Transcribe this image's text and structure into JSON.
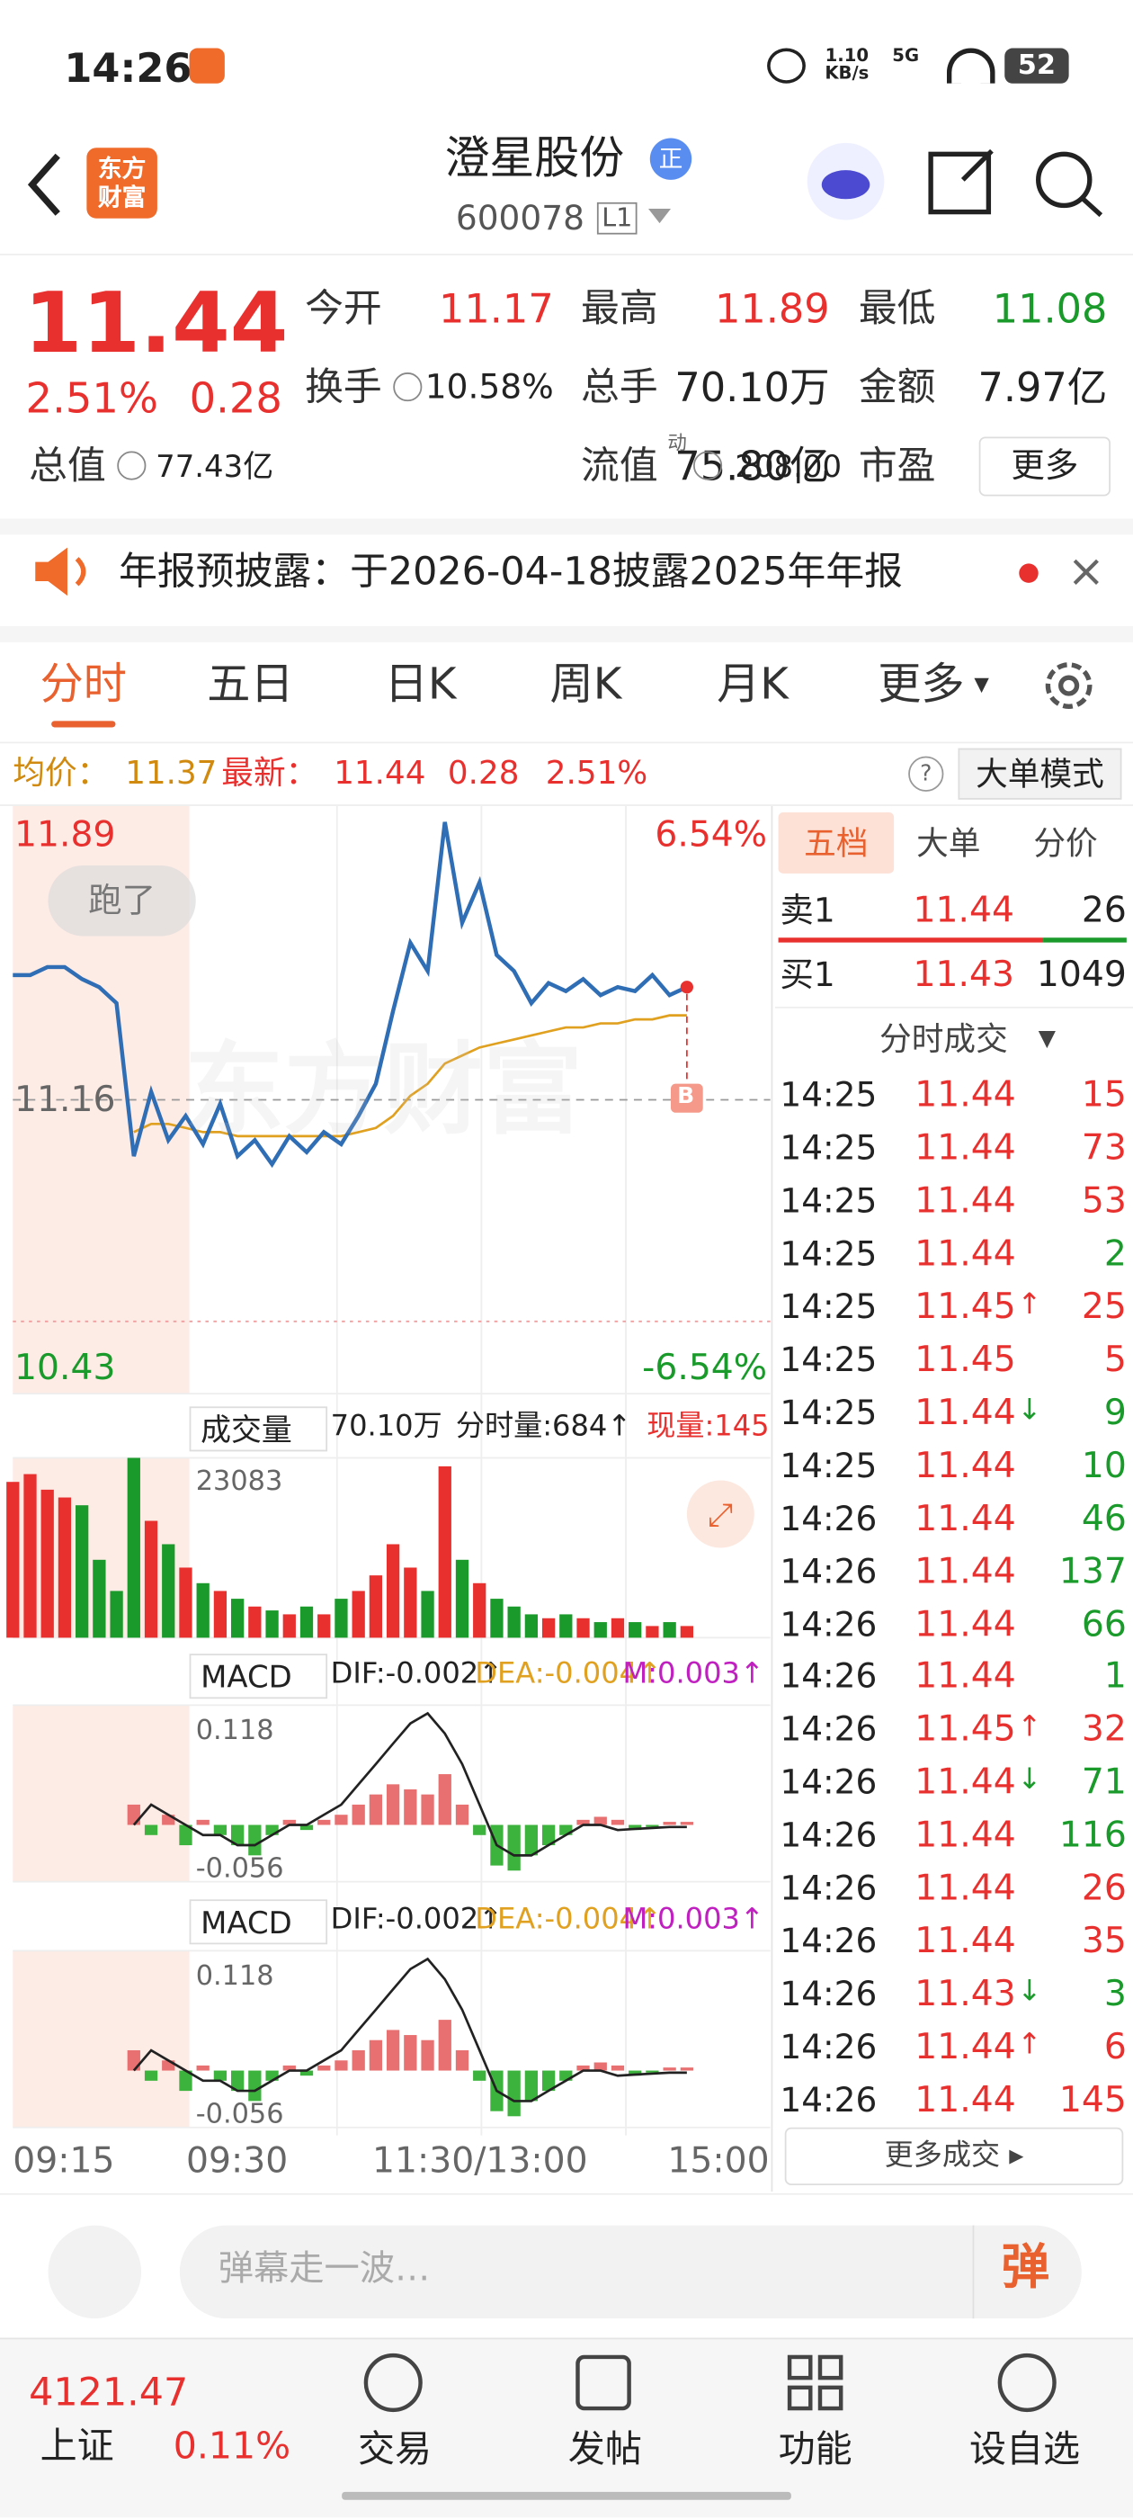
{
  "status": {
    "time": "14:26",
    "speed": "1.10",
    "speed_unit": "KB/s",
    "network": "5G",
    "battery": "52"
  },
  "header": {
    "logo_line1": "东方",
    "logo_line2": "财富",
    "name": "澄星股份",
    "badge": "正",
    "code": "600078",
    "level": "L1"
  },
  "quote": {
    "price": "11.44",
    "change_pct": "2.51%",
    "change": "0.28",
    "fields": [
      {
        "label": "今开",
        "value": "11.17"
      },
      {
        "label": "最高",
        "value": "11.89"
      },
      {
        "label": "最低",
        "value": "11.08"
      },
      {
        "label": "换手",
        "value": "10.58%"
      },
      {
        "label": "总手",
        "value": "70.10万"
      },
      {
        "label": "金额",
        "value": "7.97亿"
      },
      {
        "label": "总值",
        "value": "77.43亿"
      },
      {
        "label": "流值",
        "value": "75.80亿"
      },
      {
        "label": "市盈",
        "value": "208.00",
        "sup": "动"
      }
    ],
    "more": "更多"
  },
  "notice": {
    "text": "年报预披露：于2026-04-18披露2025年年报"
  },
  "tabs": [
    "分时",
    "五日",
    "日K",
    "周K",
    "月K",
    "更多"
  ],
  "summary": {
    "avg_label": "均价：",
    "avg": "11.37",
    "latest_label": "最新：",
    "latest": "11.44",
    "change": "0.28",
    "pct": "2.51%",
    "mode": "大单模式"
  },
  "intraday": {
    "price_max": "11.89",
    "pct_max": "6.54%",
    "pre_close": "11.16",
    "price_min": "10.43",
    "pct_min": "-6.54%",
    "bubble": "跑了",
    "marker": "B",
    "watermark": "东方财富",
    "time_labels": [
      "09:15",
      "09:30",
      "11:30/13:00",
      "15:00"
    ],
    "ylim": [
      10.43,
      11.89
    ],
    "price": [
      11.47,
      11.47,
      11.49,
      11.49,
      11.46,
      11.44,
      11.4,
      11.02,
      11.18,
      11.06,
      11.12,
      11.05,
      11.15,
      11.02,
      11.06,
      11.0,
      11.07,
      11.03,
      11.08,
      11.05,
      11.12,
      11.2,
      11.38,
      11.55,
      11.48,
      11.85,
      11.6,
      11.7,
      11.52,
      11.48,
      11.4,
      11.45,
      11.43,
      11.46,
      11.42,
      11.44,
      11.43,
      11.47,
      11.42,
      11.44
    ],
    "avg": [
      null,
      null,
      null,
      null,
      null,
      null,
      null,
      11.08,
      11.1,
      11.1,
      11.09,
      11.08,
      11.08,
      11.07,
      11.07,
      11.07,
      11.07,
      11.07,
      11.07,
      11.07,
      11.08,
      11.09,
      11.12,
      11.17,
      11.2,
      11.25,
      11.27,
      11.29,
      11.3,
      11.31,
      11.32,
      11.33,
      11.34,
      11.34,
      11.35,
      11.35,
      11.36,
      11.36,
      11.37,
      11.37
    ],
    "price_color": "#2f6db5",
    "avg_color": "#e0a020"
  },
  "volume": {
    "label": "成交量",
    "total": "70.10万",
    "minute": "分时量:684↑",
    "current": "现量:145",
    "max_label": "23083",
    "ylim": [
      0,
      23083
    ],
    "values": [
      20000,
      21000,
      19000,
      18000,
      17000,
      10000,
      6000,
      23083,
      15000,
      12000,
      9000,
      7000,
      6000,
      5000,
      4000,
      3500,
      3000,
      4000,
      3000,
      5000,
      6000,
      8000,
      12000,
      9000,
      6000,
      22000,
      10000,
      7000,
      5000,
      4000,
      3000,
      2500,
      3000,
      2500,
      2000,
      2500,
      2000,
      1500,
      2000,
      1500
    ]
  },
  "macd": {
    "label": "MACD",
    "dif": "DIF:-0.002↑",
    "dea": "DEA:-0.004↑",
    "m": "M:0.003↑",
    "top_label": "0.118",
    "bottom_label": "-0.056",
    "ylim": [
      -0.056,
      0.118
    ],
    "hist": [
      null,
      null,
      null,
      null,
      null,
      null,
      null,
      0.02,
      -0.01,
      0.01,
      -0.02,
      0.005,
      -0.01,
      -0.02,
      -0.03,
      -0.01,
      0.005,
      -0.005,
      0.005,
      0.01,
      0.02,
      0.03,
      0.04,
      0.035,
      0.03,
      0.05,
      0.02,
      -0.01,
      -0.04,
      -0.045,
      -0.03,
      -0.02,
      -0.01,
      0.005,
      0.008,
      0.005,
      -0.005,
      -0.002,
      0.003,
      0.003
    ],
    "dif_line": [
      null,
      null,
      null,
      null,
      null,
      null,
      null,
      0.0,
      0.02,
      0.01,
      0.0,
      -0.01,
      -0.01,
      -0.02,
      -0.02,
      -0.01,
      0.0,
      0.0,
      0.01,
      0.02,
      0.04,
      0.06,
      0.08,
      0.1,
      0.11,
      0.09,
      0.06,
      0.02,
      -0.02,
      -0.03,
      -0.03,
      -0.02,
      -0.01,
      0.0,
      0.0,
      -0.005,
      -0.004,
      -0.003,
      -0.002,
      -0.002
    ]
  },
  "book": {
    "tabs": [
      "五档",
      "大单",
      "分价"
    ],
    "ask": {
      "label": "卖1",
      "price": "11.44",
      "vol": "26"
    },
    "bid": {
      "label": "买1",
      "price": "11.43",
      "vol": "1049"
    },
    "ticks_title": "分时成交",
    "more": "更多成交",
    "trades": [
      {
        "time": "14:25",
        "price": "11.44",
        "vol": "15",
        "vol_color": "#e8312f"
      },
      {
        "time": "14:25",
        "price": "11.44",
        "vol": "73",
        "vol_color": "#e8312f"
      },
      {
        "time": "14:25",
        "price": "11.44",
        "vol": "53",
        "vol_color": "#e8312f"
      },
      {
        "time": "14:25",
        "price": "11.44",
        "vol": "2",
        "vol_color": "#1a9a2a"
      },
      {
        "time": "14:25",
        "price": "11.45",
        "arrow": "↑",
        "vol": "25",
        "vol_color": "#e8312f"
      },
      {
        "time": "14:25",
        "price": "11.45",
        "vol": "5",
        "vol_color": "#e8312f"
      },
      {
        "time": "14:25",
        "price": "11.44",
        "arrow": "↓",
        "vol": "9",
        "vol_color": "#1a9a2a"
      },
      {
        "time": "14:25",
        "price": "11.44",
        "vol": "10",
        "vol_color": "#1a9a2a"
      },
      {
        "time": "14:26",
        "price": "11.44",
        "vol": "46",
        "vol_color": "#1a9a2a"
      },
      {
        "time": "14:26",
        "price": "11.44",
        "vol": "137",
        "vol_color": "#1a9a2a"
      },
      {
        "time": "14:26",
        "price": "11.44",
        "vol": "66",
        "vol_color": "#1a9a2a"
      },
      {
        "time": "14:26",
        "price": "11.44",
        "vol": "1",
        "vol_color": "#1a9a2a"
      },
      {
        "time": "14:26",
        "price": "11.45",
        "arrow": "↑",
        "vol": "32",
        "vol_color": "#e8312f"
      },
      {
        "time": "14:26",
        "price": "11.44",
        "arrow": "↓",
        "vol": "71",
        "vol_color": "#1a9a2a"
      },
      {
        "time": "14:26",
        "price": "11.44",
        "vol": "116",
        "vol_color": "#1a9a2a"
      },
      {
        "time": "14:26",
        "price": "11.44",
        "vol": "26",
        "vol_color": "#e8312f"
      },
      {
        "time": "14:26",
        "price": "11.44",
        "vol": "35",
        "vol_color": "#e8312f"
      },
      {
        "time": "14:26",
        "price": "11.43",
        "arrow": "↓",
        "vol": "3",
        "vol_color": "#1a9a2a"
      },
      {
        "time": "14:26",
        "price": "11.44",
        "arrow": "↑",
        "vol": "6",
        "vol_color": "#e8312f"
      },
      {
        "time": "14:26",
        "price": "11.44",
        "vol": "145",
        "vol_color": "#e8312f"
      }
    ]
  },
  "bottom": {
    "placeholder": "弹幕走一波…",
    "danmu": "弹",
    "index_value": "4121.47",
    "index_name": "上证",
    "index_pct": "0.11%",
    "nav": [
      "交易",
      "发帖",
      "功能",
      "设自选"
    ]
  }
}
